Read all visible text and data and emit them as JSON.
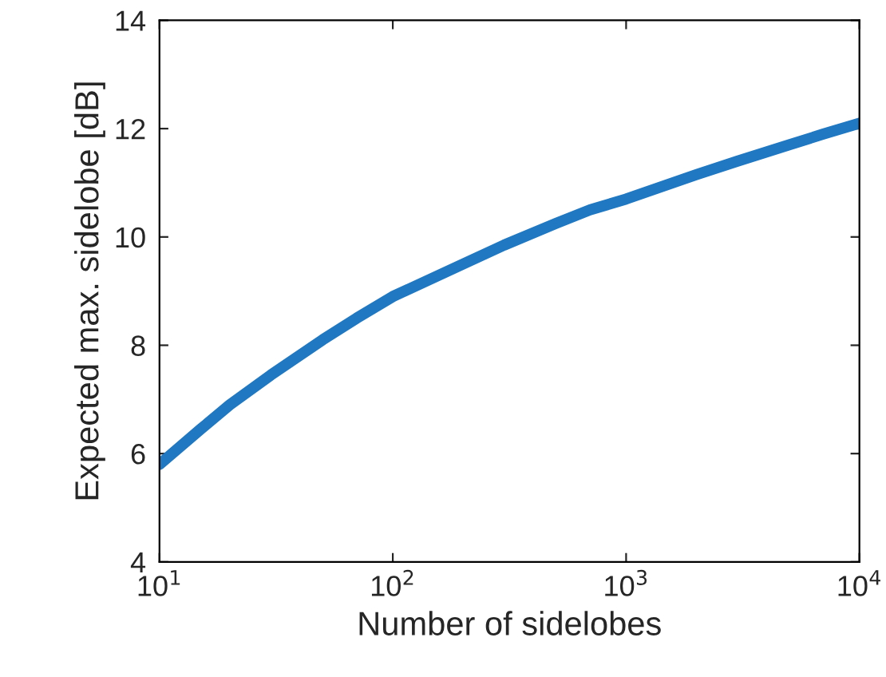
{
  "chart_data": {
    "type": "line",
    "xlabel": "Number of sidelobes",
    "ylabel": "Expected max. sidelobe [dB]",
    "log": "x",
    "x": [
      10,
      15,
      20,
      30,
      50,
      70,
      100,
      200,
      300,
      500,
      700,
      1000,
      2000,
      3000,
      5000,
      7000,
      10000
    ],
    "series": [
      {
        "color": "#1f78c1",
        "values": [
          5.8,
          6.45,
          6.9,
          7.45,
          8.1,
          8.5,
          8.9,
          9.5,
          9.85,
          10.25,
          10.5,
          10.7,
          11.15,
          11.4,
          11.7,
          11.9,
          12.1
        ]
      }
    ],
    "xlim": [
      10,
      10000
    ],
    "ylim": [
      4,
      14
    ],
    "xticks": [
      {
        "value": 10,
        "label": "10$^{1}$"
      },
      {
        "value": 100,
        "label": "10$^{2}$"
      },
      {
        "value": 1000,
        "label": "10$^{3}$"
      },
      {
        "value": 10000,
        "label": "10$^{4}$"
      }
    ],
    "yticks": [
      4,
      6,
      8,
      10,
      12,
      14
    ],
    "grid": false,
    "marker": "none",
    "line_style": "solid"
  }
}
